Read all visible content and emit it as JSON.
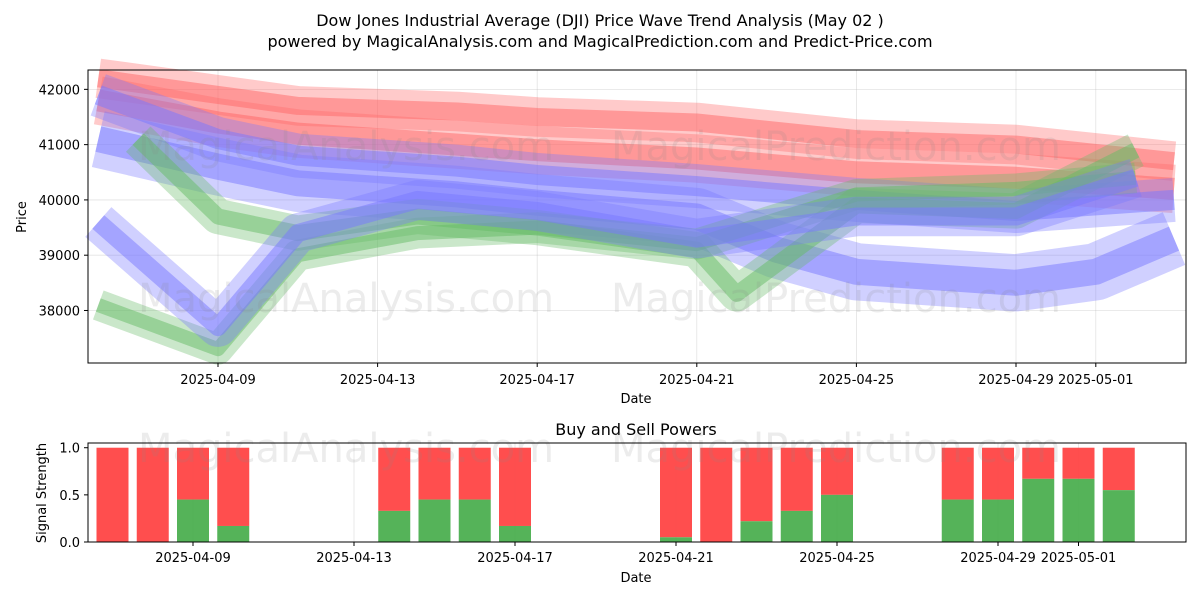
{
  "title_line1": "Dow Jones Industrial Average (DJI) Price Wave Trend Analysis (May 02 )",
  "title_line2": "powered by MagicalAnalysis.com and MagicalPrediction.com and Predict-Price.com",
  "watermarks": [
    "MagicalAnalysis.com",
    "MagicalPrediction.com"
  ],
  "colors": {
    "buy": "#4caf50",
    "sell": "#ff4444",
    "red_band": "#ff6666",
    "blue_band": "#7777ff",
    "green_band": "#66bb66"
  },
  "chart_data": [
    {
      "type": "area",
      "ylabel": "Price",
      "xlabel": "Date",
      "ylim": [
        37050,
        42350
      ],
      "yticks": [
        38000,
        39000,
        40000,
        41000,
        42000
      ],
      "ytick_labels": [
        "38000",
        "39000",
        "40000",
        "41000",
        "42000"
      ],
      "xticks": [
        "2025-04-09",
        "2025-04-13",
        "2025-04-17",
        "2025-04-21",
        "2025-04-25",
        "2025-04-29",
        "2025-05-01"
      ],
      "xtick_labels": [
        "2025-04-09",
        "2025-04-13",
        "2025-04-17",
        "2025-04-21",
        "2025-04-25",
        "2025-04-29",
        "2025-05-01"
      ],
      "grid": true,
      "series": [
        {
          "color": "red",
          "points": [
            [
              "2025-04-06",
              42200
            ],
            [
              "2025-04-09",
              41900
            ],
            [
              "2025-04-11",
              41700
            ],
            [
              "2025-04-15",
              41600
            ],
            [
              "2025-04-17",
              41500
            ],
            [
              "2025-04-21",
              41400
            ],
            [
              "2025-04-25",
              41100
            ],
            [
              "2025-04-29",
              41000
            ],
            [
              "2025-05-03",
              40700
            ]
          ]
        },
        {
          "color": "red",
          "points": [
            [
              "2025-04-06",
              41800
            ],
            [
              "2025-04-09",
              41400
            ],
            [
              "2025-04-11",
              41200
            ],
            [
              "2025-04-15",
              41000
            ],
            [
              "2025-04-17",
              40900
            ],
            [
              "2025-04-21",
              40750
            ],
            [
              "2025-04-25",
              40500
            ],
            [
              "2025-04-29",
              40400
            ],
            [
              "2025-05-03",
              40200
            ]
          ]
        },
        {
          "color": "blue",
          "points": [
            [
              "2025-04-06",
              41900
            ],
            [
              "2025-04-09",
              41100
            ],
            [
              "2025-04-11",
              40800
            ],
            [
              "2025-04-15",
              40600
            ],
            [
              "2025-04-17",
              40450
            ],
            [
              "2025-04-21",
              40250
            ],
            [
              "2025-04-25",
              40000
            ],
            [
              "2025-04-29",
              39800
            ],
            [
              "2025-05-03",
              40000
            ]
          ]
        },
        {
          "color": "blue",
          "points": [
            [
              "2025-04-06",
              41100
            ],
            [
              "2025-04-09",
              40600
            ],
            [
              "2025-04-11",
              40300
            ],
            [
              "2025-04-15",
              40100
            ],
            [
              "2025-04-17",
              39950
            ],
            [
              "2025-04-21",
              39700
            ],
            [
              "2025-04-23",
              39100
            ],
            [
              "2025-04-25",
              38700
            ],
            [
              "2025-04-29",
              38500
            ],
            [
              "2025-05-01",
              38700
            ],
            [
              "2025-05-03",
              39300
            ]
          ]
        },
        {
          "color": "green",
          "points": [
            [
              "2025-04-07",
              41100
            ],
            [
              "2025-04-09",
              39700
            ],
            [
              "2025-04-11",
              39400
            ],
            [
              "2025-04-14",
              39700
            ],
            [
              "2025-04-17",
              39500
            ],
            [
              "2025-04-21",
              39100
            ],
            [
              "2025-04-22",
              38300
            ],
            [
              "2025-04-25",
              39900
            ],
            [
              "2025-04-29",
              39800
            ],
            [
              "2025-05-02",
              40900
            ]
          ]
        },
        {
          "color": "green",
          "points": [
            [
              "2025-04-06",
              38100
            ],
            [
              "2025-04-09",
              37300
            ],
            [
              "2025-04-11",
              39000
            ],
            [
              "2025-04-14",
              39400
            ],
            [
              "2025-04-17",
              39500
            ],
            [
              "2025-04-21",
              39200
            ],
            [
              "2025-04-25",
              40100
            ],
            [
              "2025-04-29",
              40200
            ],
            [
              "2025-05-02",
              40400
            ]
          ]
        },
        {
          "color": "blue",
          "points": [
            [
              "2025-04-06",
              39600
            ],
            [
              "2025-04-09",
              37700
            ],
            [
              "2025-04-11",
              39400
            ],
            [
              "2025-04-14",
              40000
            ],
            [
              "2025-04-17",
              39800
            ],
            [
              "2025-04-21",
              39300
            ],
            [
              "2025-04-25",
              39700
            ],
            [
              "2025-04-29",
              39700
            ],
            [
              "2025-05-02",
              40400
            ]
          ]
        }
      ]
    },
    {
      "type": "bar",
      "title": "Buy and Sell Powers",
      "ylabel": "Signal Strength",
      "xlabel": "Date",
      "ylim": [
        0,
        1.05
      ],
      "yticks": [
        0.0,
        0.5,
        1.0
      ],
      "ytick_labels": [
        "0.0",
        "0.5",
        "1.0"
      ],
      "xtick_labels": [
        "2025-04-09",
        "2025-04-13",
        "2025-04-17",
        "2025-04-21",
        "2025-04-25",
        "2025-04-29",
        "2025-05-01"
      ],
      "bars": [
        {
          "date": "2025-04-07",
          "buy": 0.0
        },
        {
          "date": "2025-04-08",
          "buy": 0.0
        },
        {
          "date": "2025-04-09",
          "buy": 0.45
        },
        {
          "date": "2025-04-10",
          "buy": 0.17
        },
        {
          "date": "2025-04-14",
          "buy": 0.33
        },
        {
          "date": "2025-04-15",
          "buy": 0.45
        },
        {
          "date": "2025-04-16",
          "buy": 0.45
        },
        {
          "date": "2025-04-17",
          "buy": 0.17
        },
        {
          "date": "2025-04-21",
          "buy": 0.05
        },
        {
          "date": "2025-04-22",
          "buy": 0.0
        },
        {
          "date": "2025-04-23",
          "buy": 0.22
        },
        {
          "date": "2025-04-24",
          "buy": 0.33
        },
        {
          "date": "2025-04-25",
          "buy": 0.5
        },
        {
          "date": "2025-04-28",
          "buy": 0.45
        },
        {
          "date": "2025-04-29",
          "buy": 0.45
        },
        {
          "date": "2025-04-30",
          "buy": 0.67
        },
        {
          "date": "2025-05-01",
          "buy": 0.67
        },
        {
          "date": "2025-05-02",
          "buy": 0.55
        }
      ]
    }
  ]
}
